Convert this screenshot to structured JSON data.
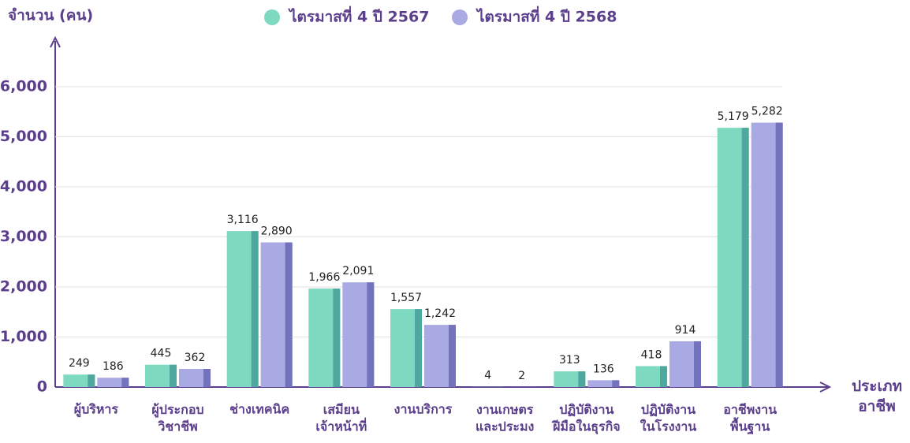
{
  "chart_data": {
    "type": "bar",
    "y_label": "จำนวน (คน)",
    "x_label": "ประเภท\nอาชีพ",
    "categories": [
      "ผู้บริหาร",
      "ผู้ประกอบ\nวิชาชีพ",
      "ช่างเทคนิค",
      "เสมียน\nเจ้าหน้าที่",
      "งานบริการ",
      "งานเกษตร\nและประมง",
      "ปฏิบัติงาน\nฝีมือในธุรกิจ",
      "ปฏิบัติงาน\nในโรงงาน",
      "อาชีพงาน\nพื้นฐาน"
    ],
    "series": [
      {
        "name": "ไตรมาสที่ 4 ปี 2567",
        "color": "#7dd9c0",
        "side_color": "#4fa8a0",
        "values": [
          249,
          445,
          3116,
          1966,
          1557,
          4,
          313,
          418,
          5179
        ],
        "value_labels": [
          "249",
          "445",
          "3,116",
          "1,966",
          "1,557",
          "4",
          "313",
          "418",
          "5,179"
        ]
      },
      {
        "name": "ไตรมาสที่ 4 ปี 2568",
        "color": "#a9a9e3",
        "side_color": "#7272bd",
        "values": [
          186,
          362,
          2890,
          2091,
          1242,
          2,
          136,
          914,
          5282
        ],
        "value_labels": [
          "186",
          "362",
          "2,890",
          "2,091",
          "1,242",
          "2",
          "136",
          "914",
          "5,282"
        ]
      }
    ],
    "ylim": [
      0,
      6000
    ],
    "yticks": [
      0,
      {
        "value": 1000,
        "label": "1,000"
      },
      {
        "value": 2000,
        "label": "2,000"
      },
      {
        "value": 3000,
        "label": "3,000"
      },
      {
        "value": 4000,
        "label": "4,000"
      },
      {
        "value": 5000,
        "label": "5,000"
      },
      {
        "value": 6000,
        "label": "6,000"
      }
    ],
    "grid": true,
    "legend": "top"
  }
}
